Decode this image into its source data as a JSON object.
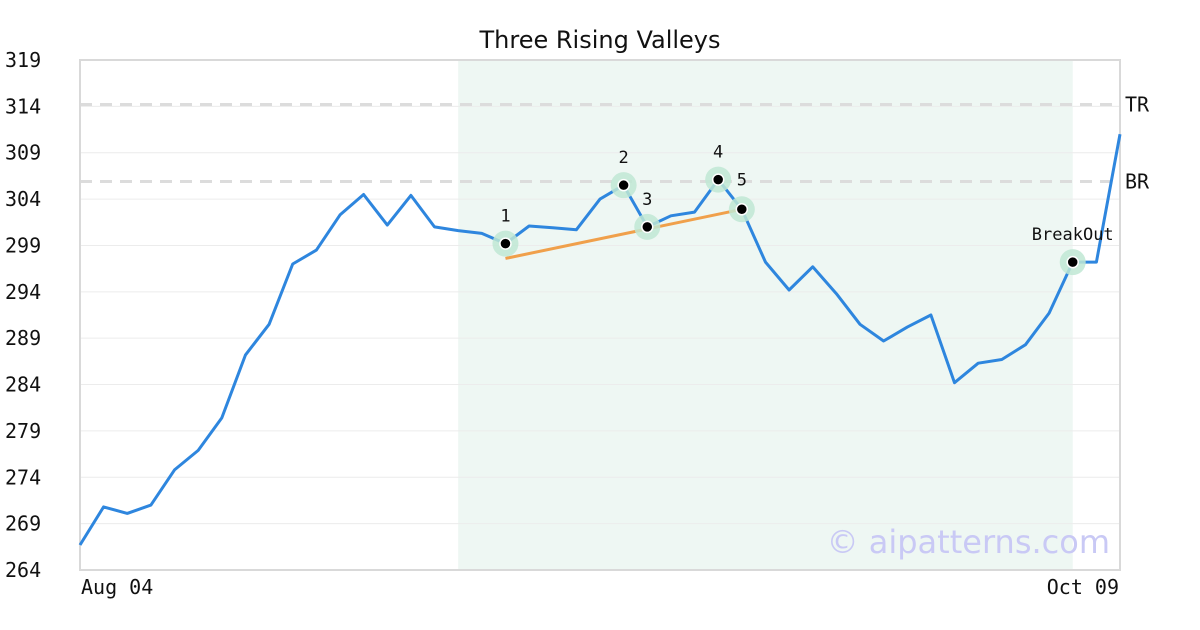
{
  "chart_data": {
    "type": "line",
    "title": "Three Rising Valleys",
    "xlabel": "",
    "ylabel": "",
    "ylim": [
      264,
      319
    ],
    "y_ticks": [
      "264",
      "269",
      "274",
      "279",
      "284",
      "289",
      "294",
      "299",
      "304",
      "309",
      "314",
      "319"
    ],
    "x_tick_labels": [
      "Aug 04",
      "Oct 09"
    ],
    "grid": "horizontal",
    "series": [
      {
        "color": "#2e86de",
        "values": [
          266.7,
          270.8,
          270.1,
          271.0,
          274.8,
          276.9,
          280.4,
          287.2,
          290.5,
          297.0,
          298.5,
          302.3,
          304.5,
          301.2,
          304.4,
          301.0,
          300.6,
          300.3,
          299.2,
          301.1,
          300.9,
          300.7,
          304.0,
          305.5,
          301.0,
          302.2,
          302.6,
          306.1,
          302.9,
          297.2,
          294.2,
          296.7,
          293.8,
          290.5,
          288.7,
          290.2,
          291.5,
          284.2,
          286.3,
          286.7,
          288.3,
          291.7,
          297.2,
          297.2,
          311.0
        ]
      }
    ],
    "levels": [
      {
        "label": "TR",
        "value": 314.2
      },
      {
        "label": "BR",
        "value": 305.9
      }
    ],
    "pattern_points": [
      {
        "label": "1",
        "index": 18,
        "value": 299.2
      },
      {
        "label": "2",
        "index": 23,
        "value": 305.5
      },
      {
        "label": "3",
        "index": 24,
        "value": 301.0
      },
      {
        "label": "4",
        "index": 27,
        "value": 306.1
      },
      {
        "label": "5",
        "index": 28,
        "value": 302.9
      },
      {
        "label": "BreakOut",
        "index": 42,
        "value": 297.2
      }
    ],
    "support_line": {
      "from_index": 18,
      "from_value": 297.6,
      "to_index": 28,
      "to_value": 302.9,
      "color": "#f0a04b"
    },
    "highlight_range": {
      "start_index": 16,
      "end_index": 42,
      "color": "#eef7f3"
    },
    "watermark": "© aipatterns.com"
  }
}
